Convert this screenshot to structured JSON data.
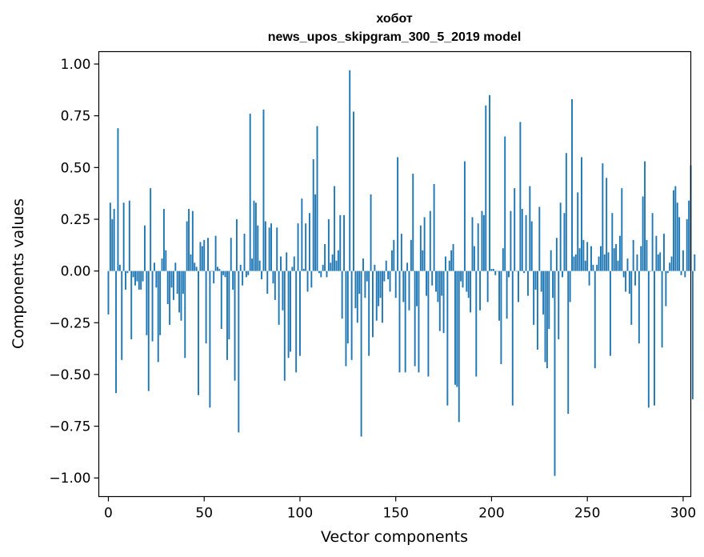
{
  "chart_data": {
    "type": "bar",
    "title_line1": "хобот",
    "title_line2": "news_upos_skipgram_300_5_2019 model",
    "xlabel": "Vector components",
    "ylabel": "Components values",
    "xlim": [
      -5,
      304
    ],
    "ylim": [
      -1.09,
      1.06
    ],
    "xticks": [
      0,
      50,
      100,
      150,
      200,
      250,
      300
    ],
    "yticks": [
      -1.0,
      -0.75,
      -0.5,
      -0.25,
      0.0,
      0.25,
      0.5,
      0.75,
      1.0
    ],
    "xtick_labels": [
      "0",
      "50",
      "100",
      "150",
      "200",
      "250",
      "300"
    ],
    "ytick_labels": [
      "−1.00",
      "−0.75",
      "−0.50",
      "−0.25",
      "0.00",
      "0.25",
      "0.50",
      "0.75",
      "1.00"
    ],
    "bar_color": "#1f77b4",
    "values": [
      -0.21,
      0.33,
      0.25,
      0.3,
      -0.59,
      0.69,
      0.03,
      -0.43,
      0.33,
      -0.09,
      -0.01,
      0.34,
      -0.33,
      -0.03,
      -0.07,
      -0.05,
      -0.09,
      -0.09,
      -0.05,
      0.22,
      -0.31,
      -0.58,
      0.4,
      -0.34,
      0.04,
      -0.08,
      -0.44,
      -0.31,
      0.06,
      0.3,
      0.1,
      -0.16,
      -0.26,
      -0.08,
      -0.14,
      0.04,
      -0.11,
      -0.2,
      -0.24,
      -0.11,
      -0.42,
      0.24,
      0.3,
      0.08,
      0.29,
      0.04,
      0.02,
      -0.6,
      0.14,
      0.12,
      0.15,
      -0.35,
      0.16,
      -0.66,
      0.0,
      -0.06,
      0.17,
      0.02,
      0.01,
      -0.28,
      -0.02,
      -0.03,
      -0.43,
      -0.33,
      0.16,
      -0.09,
      -0.53,
      0.25,
      -0.78,
      0.03,
      -0.07,
      0.18,
      -0.03,
      -0.02,
      0.76,
      0.06,
      0.34,
      0.33,
      0.22,
      0.05,
      -0.04,
      0.78,
      0.24,
      -0.11,
      0.21,
      0.23,
      -0.06,
      -0.14,
      0.21,
      -0.26,
      0.07,
      -0.19,
      -0.53,
      0.09,
      -0.42,
      -0.39,
      0.02,
      0.07,
      -0.49,
      0.23,
      -0.41,
      0.35,
      0.01,
      0.23,
      -0.1,
      0.28,
      -0.08,
      0.54,
      0.37,
      0.7,
      -0.01,
      -0.03,
      0.03,
      0.13,
      -0.03,
      0.25,
      0.04,
      0.08,
      0.41,
      0.05,
      0.1,
      0.27,
      -0.23,
      0.27,
      -0.46,
      -0.35,
      0.97,
      -0.43,
      0.77,
      -0.18,
      -0.25,
      -0.11,
      -0.8,
      0.06,
      -0.13,
      -0.05,
      -0.41,
      0.37,
      -0.32,
      0.03,
      -0.24,
      -0.17,
      -0.13,
      -0.25,
      -0.05,
      0.05,
      -0.04,
      -0.1,
      0.1,
      0.15,
      -0.13,
      0.55,
      -0.49,
      0.18,
      -0.15,
      -0.49,
      0.04,
      -0.19,
      0.15,
      0.47,
      -0.46,
      -0.17,
      -0.49,
      0.22,
      0.1,
      0.26,
      -0.12,
      -0.51,
      0.29,
      -0.07,
      0.42,
      -0.1,
      -0.15,
      -0.29,
      -0.12,
      -0.3,
      0.07,
      -0.65,
      0.05,
      0.1,
      0.13,
      -0.55,
      -0.56,
      -0.73,
      -0.05,
      -0.08,
      0.53,
      -0.1,
      -0.13,
      -0.2,
      0.26,
      0.12,
      -0.51,
      0.23,
      -0.19,
      0.29,
      0.27,
      0.8,
      -0.15,
      0.85,
      0.01,
      0.01,
      -0.02,
      0.0,
      -0.24,
      -0.45,
      0.11,
      0.65,
      -0.23,
      -0.03,
      0.29,
      -0.65,
      0.4,
      0.0,
      -0.15,
      0.72,
      0.3,
      -0.01,
      0.27,
      -0.12,
      0.41,
      0.24,
      -0.26,
      -0.09,
      -0.38,
      0.31,
      -0.1,
      -0.21,
      -0.44,
      -0.47,
      -0.28,
      0.1,
      -0.13,
      -0.99,
      0.16,
      -0.33,
      0.33,
      -0.03,
      0.28,
      0.57,
      -0.69,
      -0.15,
      0.83,
      0.07,
      0.08,
      0.38,
      0.11,
      0.55,
      0.15,
      0.05,
      0.14,
      -0.07,
      0.12,
      0.03,
      -0.47,
      0.03,
      0.07,
      0.12,
      0.52,
      0.08,
      0.45,
      0.09,
      -0.41,
      0.28,
      0.11,
      0.13,
      0.05,
      0.17,
      0.4,
      -0.03,
      -0.1,
      0.06,
      -0.11,
      -0.26,
      0.15,
      -0.07,
      0.08,
      -0.35,
      0.12,
      0.36,
      0.53,
      0.15,
      -0.66,
      0.0,
      0.28,
      -0.65,
      0.17,
      0.08,
      0.09,
      -0.37,
      0.18,
      -0.17,
      -0.01,
      0.04,
      0.07,
      0.39,
      0.41,
      0.33,
      0.26,
      -0.02,
      0.1,
      -0.03,
      0.25,
      0.34,
      0.51,
      -0.62,
      0.08
    ]
  }
}
